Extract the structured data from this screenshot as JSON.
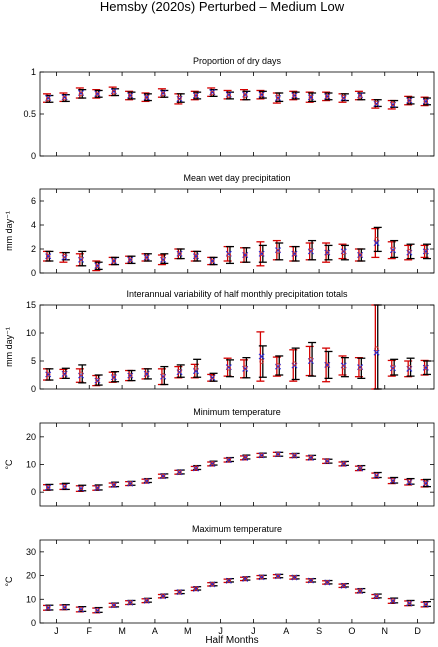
{
  "title": "Hemsby (2020s) Perturbed – Medium Low",
  "xlabel": "Half Months",
  "month_labels": [
    "J",
    "F",
    "M",
    "A",
    "M",
    "J",
    "J",
    "A",
    "S",
    "O",
    "N",
    "D"
  ],
  "colors": {
    "observed": "#d40000",
    "model": "#000000",
    "mean_x": "#2b2bd6",
    "mean_o": "#cc3333"
  },
  "chart_data": [
    {
      "type": "scatter",
      "title": "Proportion of dry days",
      "ylabel": "",
      "ylim": [
        0,
        1
      ],
      "yticks": [
        0,
        0.5,
        1
      ],
      "yticklabels": [
        "0",
        "0.5",
        "1"
      ],
      "x": [
        1,
        2,
        3,
        4,
        5,
        6,
        7,
        8,
        9,
        10,
        11,
        12,
        13,
        14,
        15,
        16,
        17,
        18,
        19,
        20,
        21,
        22,
        23,
        24
      ],
      "series": [
        {
          "values": [
            0.69,
            0.7,
            0.75,
            0.74,
            0.77,
            0.72,
            0.7,
            0.75,
            0.68,
            0.72,
            0.76,
            0.73,
            0.73,
            0.73,
            0.69,
            0.72,
            0.7,
            0.71,
            0.69,
            0.72,
            0.62,
            0.61,
            0.66,
            0.65
          ],
          "err": [
            0.05,
            0.05,
            0.06,
            0.05,
            0.05,
            0.05,
            0.05,
            0.05,
            0.06,
            0.05,
            0.05,
            0.05,
            0.06,
            0.05,
            0.06,
            0.05,
            0.06,
            0.05,
            0.05,
            0.05,
            0.05,
            0.05,
            0.05,
            0.05
          ]
        },
        {
          "values": [
            0.68,
            0.69,
            0.74,
            0.74,
            0.76,
            0.72,
            0.7,
            0.74,
            0.69,
            0.72,
            0.75,
            0.72,
            0.72,
            0.73,
            0.7,
            0.72,
            0.7,
            0.71,
            0.7,
            0.71,
            0.63,
            0.62,
            0.66,
            0.65
          ],
          "err": [
            0.04,
            0.04,
            0.05,
            0.04,
            0.04,
            0.04,
            0.04,
            0.04,
            0.05,
            0.04,
            0.04,
            0.04,
            0.05,
            0.04,
            0.05,
            0.04,
            0.05,
            0.04,
            0.04,
            0.04,
            0.04,
            0.04,
            0.04,
            0.04
          ]
        }
      ]
    },
    {
      "type": "scatter",
      "title": "Mean wet day precipitation",
      "ylabel": "mm day⁻¹",
      "ylim": [
        0,
        7
      ],
      "yticks": [
        0,
        2,
        4,
        6
      ],
      "yticklabels": [
        "0",
        "2",
        "4",
        "6"
      ],
      "x": [
        1,
        2,
        3,
        4,
        5,
        6,
        7,
        8,
        9,
        10,
        11,
        12,
        13,
        14,
        15,
        16,
        17,
        18,
        19,
        20,
        21,
        22,
        23,
        24
      ],
      "series": [
        {
          "values": [
            1.4,
            1.3,
            1.1,
            0.6,
            1.0,
            1.1,
            1.3,
            1.1,
            1.6,
            1.4,
            1.0,
            1.6,
            1.5,
            1.6,
            1.9,
            1.6,
            1.8,
            1.7,
            1.8,
            1.5,
            2.5,
            1.9,
            1.7,
            1.8
          ],
          "err": [
            0.4,
            0.4,
            0.5,
            0.4,
            0.3,
            0.3,
            0.3,
            0.4,
            0.4,
            0.4,
            0.3,
            0.6,
            0.6,
            1.0,
            0.8,
            0.6,
            0.7,
            0.8,
            0.6,
            0.5,
            1.2,
            0.7,
            0.6,
            0.5
          ]
        },
        {
          "values": [
            1.4,
            1.4,
            1.2,
            0.6,
            1.0,
            1.1,
            1.3,
            1.2,
            1.6,
            1.4,
            1.0,
            1.5,
            1.5,
            1.6,
            1.8,
            1.6,
            1.9,
            1.7,
            1.7,
            1.5,
            2.8,
            2.0,
            1.8,
            1.8
          ],
          "err": [
            0.4,
            0.3,
            0.6,
            0.3,
            0.3,
            0.3,
            0.3,
            0.4,
            0.4,
            0.4,
            0.3,
            0.7,
            0.6,
            0.7,
            0.7,
            0.6,
            0.8,
            0.6,
            0.6,
            0.5,
            1.0,
            0.7,
            0.6,
            0.6
          ]
        }
      ]
    },
    {
      "type": "scatter",
      "title": "Interannual variability of half monthly precipitation totals",
      "ylabel": "mm day⁻¹",
      "ylim": [
        0,
        15
      ],
      "yticks": [
        0,
        5,
        10,
        15
      ],
      "yticklabels": [
        "0",
        "5",
        "10",
        "15"
      ],
      "x": [
        1,
        2,
        3,
        4,
        5,
        6,
        7,
        8,
        9,
        10,
        11,
        12,
        13,
        14,
        15,
        16,
        17,
        18,
        19,
        20,
        21,
        22,
        23,
        24
      ],
      "series": [
        {
          "values": [
            2.6,
            2.7,
            2.4,
            1.5,
            2.1,
            2.4,
            2.7,
            2.2,
            3.0,
            3.2,
            2.0,
            3.9,
            3.6,
            5.8,
            4.0,
            4.2,
            5.0,
            4.3,
            4.2,
            3.9,
            6.5,
            3.7,
            3.6,
            3.8
          ],
          "err": [
            1.0,
            0.8,
            1.2,
            0.9,
            0.9,
            0.9,
            0.9,
            1.4,
            1.0,
            1.2,
            0.6,
            1.6,
            1.6,
            4.4,
            1.7,
            2.8,
            2.6,
            3.0,
            1.7,
            1.7,
            8.5,
            1.4,
            1.4,
            1.3
          ]
        },
        {
          "values": [
            2.6,
            2.8,
            2.7,
            1.6,
            2.2,
            2.4,
            2.7,
            2.4,
            3.2,
            3.7,
            2.1,
            3.7,
            3.8,
            4.9,
            4.2,
            4.5,
            5.3,
            4.3,
            3.9,
            3.7,
            7.2,
            3.9,
            3.9,
            3.8
          ],
          "err": [
            1.0,
            0.9,
            1.6,
            0.9,
            0.9,
            0.9,
            0.9,
            1.6,
            1.1,
            1.6,
            0.7,
            1.5,
            1.8,
            2.8,
            1.7,
            2.8,
            3.0,
            2.4,
            1.7,
            1.8,
            8.1,
            1.4,
            1.6,
            1.2
          ]
        }
      ]
    },
    {
      "type": "scatter",
      "title": "Minimum temperature",
      "ylabel": "°C",
      "ylim": [
        -5,
        25
      ],
      "yticks": [
        0,
        10,
        20
      ],
      "yticklabels": [
        "0",
        "10",
        "20"
      ],
      "x": [
        1,
        2,
        3,
        4,
        5,
        6,
        7,
        8,
        9,
        10,
        11,
        12,
        13,
        14,
        15,
        16,
        17,
        18,
        19,
        20,
        21,
        22,
        23,
        24
      ],
      "series": [
        {
          "values": [
            1.7,
            2.0,
            1.3,
            1.5,
            2.6,
            3.1,
            4.0,
            5.8,
            7.2,
            8.6,
            10.2,
            11.6,
            12.4,
            13.3,
            13.7,
            13.2,
            12.4,
            11.2,
            10.2,
            8.6,
            6.0,
            4.1,
            3.6,
            3.2
          ],
          "err": [
            1.0,
            1.0,
            1.0,
            0.8,
            0.7,
            0.7,
            0.7,
            0.7,
            0.7,
            0.7,
            0.7,
            0.7,
            0.7,
            0.7,
            0.7,
            0.7,
            0.7,
            0.8,
            0.7,
            0.8,
            0.9,
            1.0,
            1.0,
            1.3
          ]
        },
        {
          "values": [
            1.8,
            2.1,
            1.5,
            1.7,
            2.8,
            3.2,
            4.2,
            5.9,
            7.3,
            8.9,
            10.5,
            11.8,
            12.7,
            13.4,
            13.7,
            13.3,
            12.6,
            11.2,
            10.4,
            8.9,
            6.2,
            4.3,
            3.9,
            3.3
          ],
          "err": [
            1.0,
            1.1,
            1.0,
            0.9,
            0.8,
            0.7,
            0.7,
            0.7,
            0.7,
            0.7,
            0.7,
            0.7,
            0.7,
            0.7,
            0.7,
            0.7,
            0.7,
            0.7,
            0.7,
            0.7,
            0.9,
            1.0,
            1.0,
            1.3
          ]
        }
      ]
    },
    {
      "type": "scatter",
      "title": "Maximum temperature",
      "ylabel": "°C",
      "ylim": [
        0,
        35
      ],
      "yticks": [
        0,
        10,
        20,
        30
      ],
      "yticklabels": [
        "0",
        "10",
        "20",
        "30"
      ],
      "x": [
        1,
        2,
        3,
        4,
        5,
        6,
        7,
        8,
        9,
        10,
        11,
        12,
        13,
        14,
        15,
        16,
        17,
        18,
        19,
        20,
        21,
        22,
        23,
        24
      ],
      "series": [
        {
          "values": [
            6.4,
            6.6,
            5.7,
            5.3,
            7.5,
            8.6,
            9.4,
            11.3,
            13.0,
            14.4,
            16.3,
            17.8,
            18.6,
            19.3,
            19.7,
            19.2,
            17.9,
            17.1,
            15.7,
            13.5,
            11.2,
            9.3,
            8.3,
            7.8
          ],
          "err": [
            1.0,
            1.0,
            1.0,
            1.0,
            0.8,
            0.8,
            0.8,
            0.7,
            0.7,
            0.7,
            0.7,
            0.7,
            0.7,
            0.7,
            0.7,
            0.7,
            0.7,
            0.7,
            0.7,
            0.8,
            0.8,
            1.0,
            1.0,
            1.0
          ]
        },
        {
          "values": [
            6.5,
            6.7,
            5.9,
            5.5,
            7.6,
            8.7,
            9.6,
            11.5,
            13.1,
            14.6,
            16.4,
            18.0,
            18.8,
            19.4,
            19.8,
            19.3,
            18.0,
            17.2,
            15.9,
            13.7,
            11.4,
            9.5,
            8.5,
            8.0
          ],
          "err": [
            1.0,
            1.0,
            1.0,
            1.0,
            0.8,
            0.8,
            0.8,
            0.7,
            0.7,
            0.7,
            0.7,
            0.7,
            0.7,
            0.7,
            0.7,
            0.7,
            0.7,
            0.7,
            0.7,
            0.8,
            0.8,
            1.0,
            1.0,
            1.0
          ]
        }
      ]
    }
  ]
}
